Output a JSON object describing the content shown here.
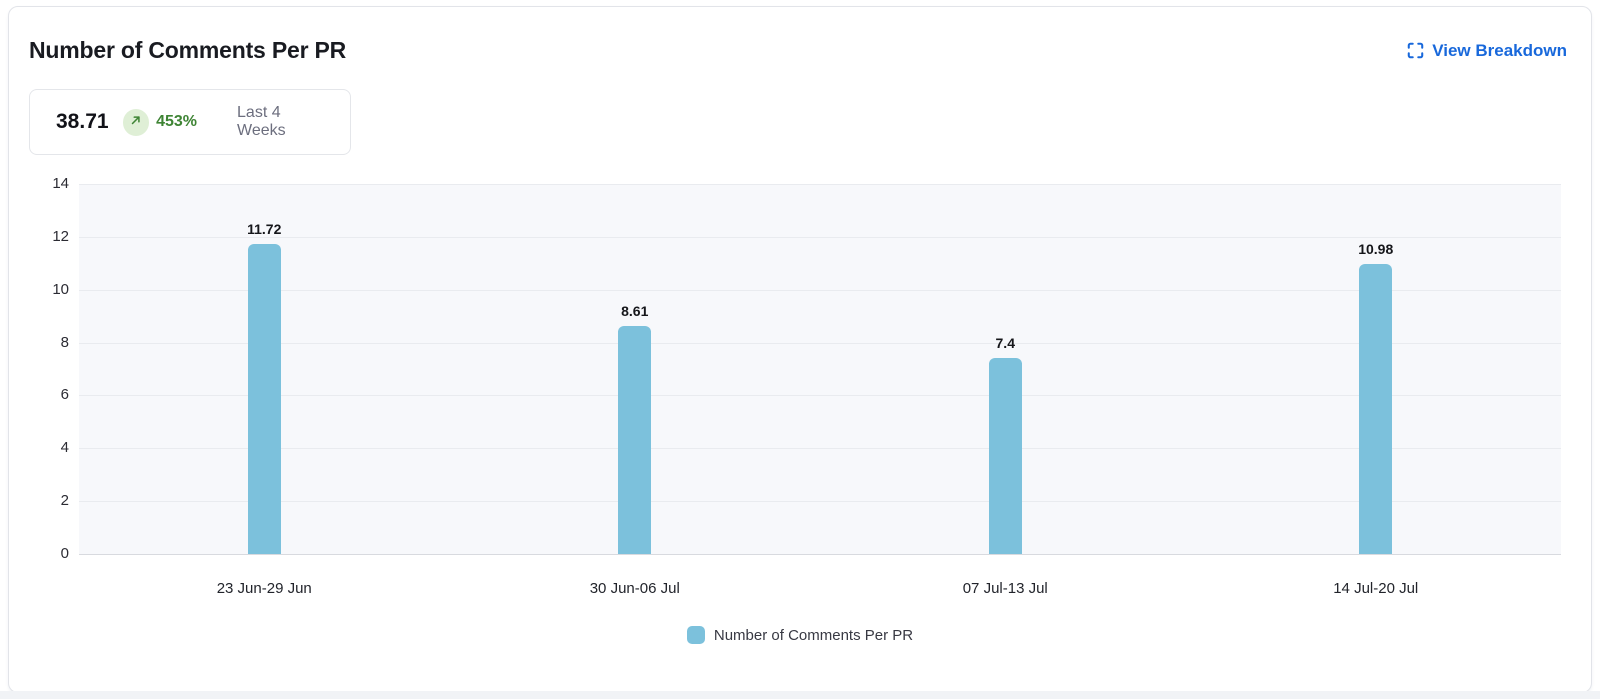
{
  "card": {
    "title": "Number of Comments Per PR",
    "view_breakdown_label": "View Breakdown",
    "stat": {
      "value": "38.71",
      "trend_direction": "up",
      "trend_percent": "453%",
      "period_label": "Last 4 Weeks"
    }
  },
  "colors": {
    "bar": "#7cc1dc",
    "link_blue": "#1868db",
    "trend_green": "#3e8434",
    "trend_badge_bg": "#dfefd6",
    "plot_bg": "#f7f8fb",
    "gridline": "#e9ebef",
    "axis_line": "#d8dadf"
  },
  "chart_data": {
    "type": "bar",
    "title": "Number of Comments Per PR",
    "categories": [
      "23 Jun-29 Jun",
      "30 Jun-06 Jul",
      "07 Jul-13 Jul",
      "14 Jul-20 Jul"
    ],
    "values": [
      11.72,
      8.61,
      7.4,
      10.98
    ],
    "value_labels": [
      "11.72",
      "8.61",
      "7.4",
      "10.98"
    ],
    "xlabel": "",
    "ylabel": "",
    "ylim": [
      0,
      14
    ],
    "yticks": [
      0,
      2,
      4,
      6,
      8,
      10,
      12,
      14
    ],
    "grid": "horizontal",
    "legend": [
      {
        "label": "Number of Comments Per PR",
        "color": "#7cc1dc"
      }
    ],
    "legend_position": "bottom"
  }
}
